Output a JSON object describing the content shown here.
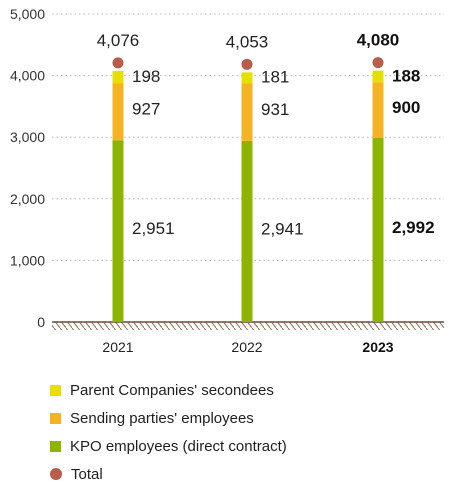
{
  "chart_data": {
    "type": "bar",
    "stacked": true,
    "categories": [
      "2021",
      "2022",
      "2023"
    ],
    "highlight_category": "2023",
    "series": [
      {
        "name": "KPO employees (direct contract)",
        "values": [
          2951,
          2941,
          2992
        ],
        "color": "#8cb400"
      },
      {
        "name": "Sending parties' employees",
        "values": [
          927,
          931,
          900
        ],
        "color": "#f5b323"
      },
      {
        "name": "Parent Companies' secondees",
        "values": [
          198,
          181,
          188
        ],
        "color": "#e6e000"
      }
    ],
    "totals": {
      "name": "Total",
      "values": [
        4076,
        4053,
        4080
      ],
      "color": "#b85c4c"
    },
    "data_labels": {
      "2021": {
        "kpo": "2,951",
        "sending": "927",
        "parent": "198",
        "total": "4,076"
      },
      "2022": {
        "kpo": "2,941",
        "sending": "931",
        "parent": "181",
        "total": "4,053"
      },
      "2023": {
        "kpo": "2,992",
        "sending": "900",
        "parent": "188",
        "total": "4,080"
      }
    },
    "y_ticks": [
      "0",
      "1,000",
      "2,000",
      "3,000",
      "4,000",
      "5,000"
    ],
    "ylim": [
      0,
      5000
    ],
    "grid": "horizontal dotted",
    "legend_position": "bottom-left",
    "title": "",
    "xlabel": "",
    "ylabel": ""
  },
  "legend": [
    {
      "label": "Parent Companies' secondees",
      "color": "#e6e000",
      "shape": "square"
    },
    {
      "label": "Sending parties' employees",
      "color": "#f5b323",
      "shape": "square"
    },
    {
      "label": "KPO employees (direct contract)",
      "color": "#8cb400",
      "shape": "square"
    },
    {
      "label": "Total",
      "color": "#b85c4c",
      "shape": "circle"
    }
  ]
}
